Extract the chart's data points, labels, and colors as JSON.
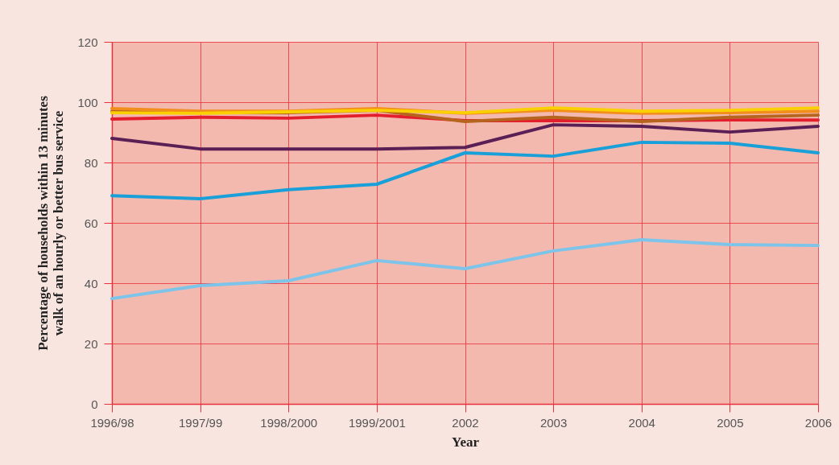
{
  "chart_data": {
    "type": "line",
    "xlabel": "Year",
    "ylabel": "Percentage of households within 13 minutes\nwalk of an hourly or better bus service",
    "categories": [
      "1996/98",
      "1997/99",
      "1998/2000",
      "1999/2001",
      "2002",
      "2003",
      "2004",
      "2005",
      "2006"
    ],
    "series": [
      {
        "color": "#7cc4ea",
        "values": [
          34.9,
          39.2,
          40.8,
          47.5,
          44.8,
          50.7,
          54.4,
          52.8,
          52.5
        ]
      },
      {
        "color": "#1aa0d8",
        "values": [
          69,
          68,
          71,
          72.8,
          83.2,
          82.1,
          86.7,
          86.4,
          83.2
        ]
      },
      {
        "color": "#5a1f55",
        "values": [
          88,
          84.5,
          84.5,
          84.5,
          85,
          92.5,
          92,
          90.1,
          92
        ]
      },
      {
        "color": "#e31e2d",
        "values": [
          94.4,
          95,
          94.7,
          95.7,
          93.9,
          93.9,
          93.9,
          94.1,
          94.1
        ]
      },
      {
        "color": "#b5651d",
        "values": [
          97,
          96.5,
          96.5,
          97.3,
          93.6,
          95,
          93.6,
          95,
          95.7
        ]
      },
      {
        "color": "#f18e1c",
        "values": [
          97.9,
          97,
          97,
          97.9,
          96.3,
          97.3,
          96.3,
          96.5,
          97
        ]
      },
      {
        "color": "#fbd000",
        "values": [
          96.5,
          96.3,
          96.8,
          97.3,
          96.5,
          98.1,
          97,
          97.3,
          98.1
        ]
      }
    ],
    "ylim": [
      0,
      120
    ],
    "yticks": [
      0,
      20,
      40,
      60,
      80,
      100,
      120
    ],
    "grid": true,
    "legend": false,
    "line_style": "solid",
    "marker": "none"
  }
}
